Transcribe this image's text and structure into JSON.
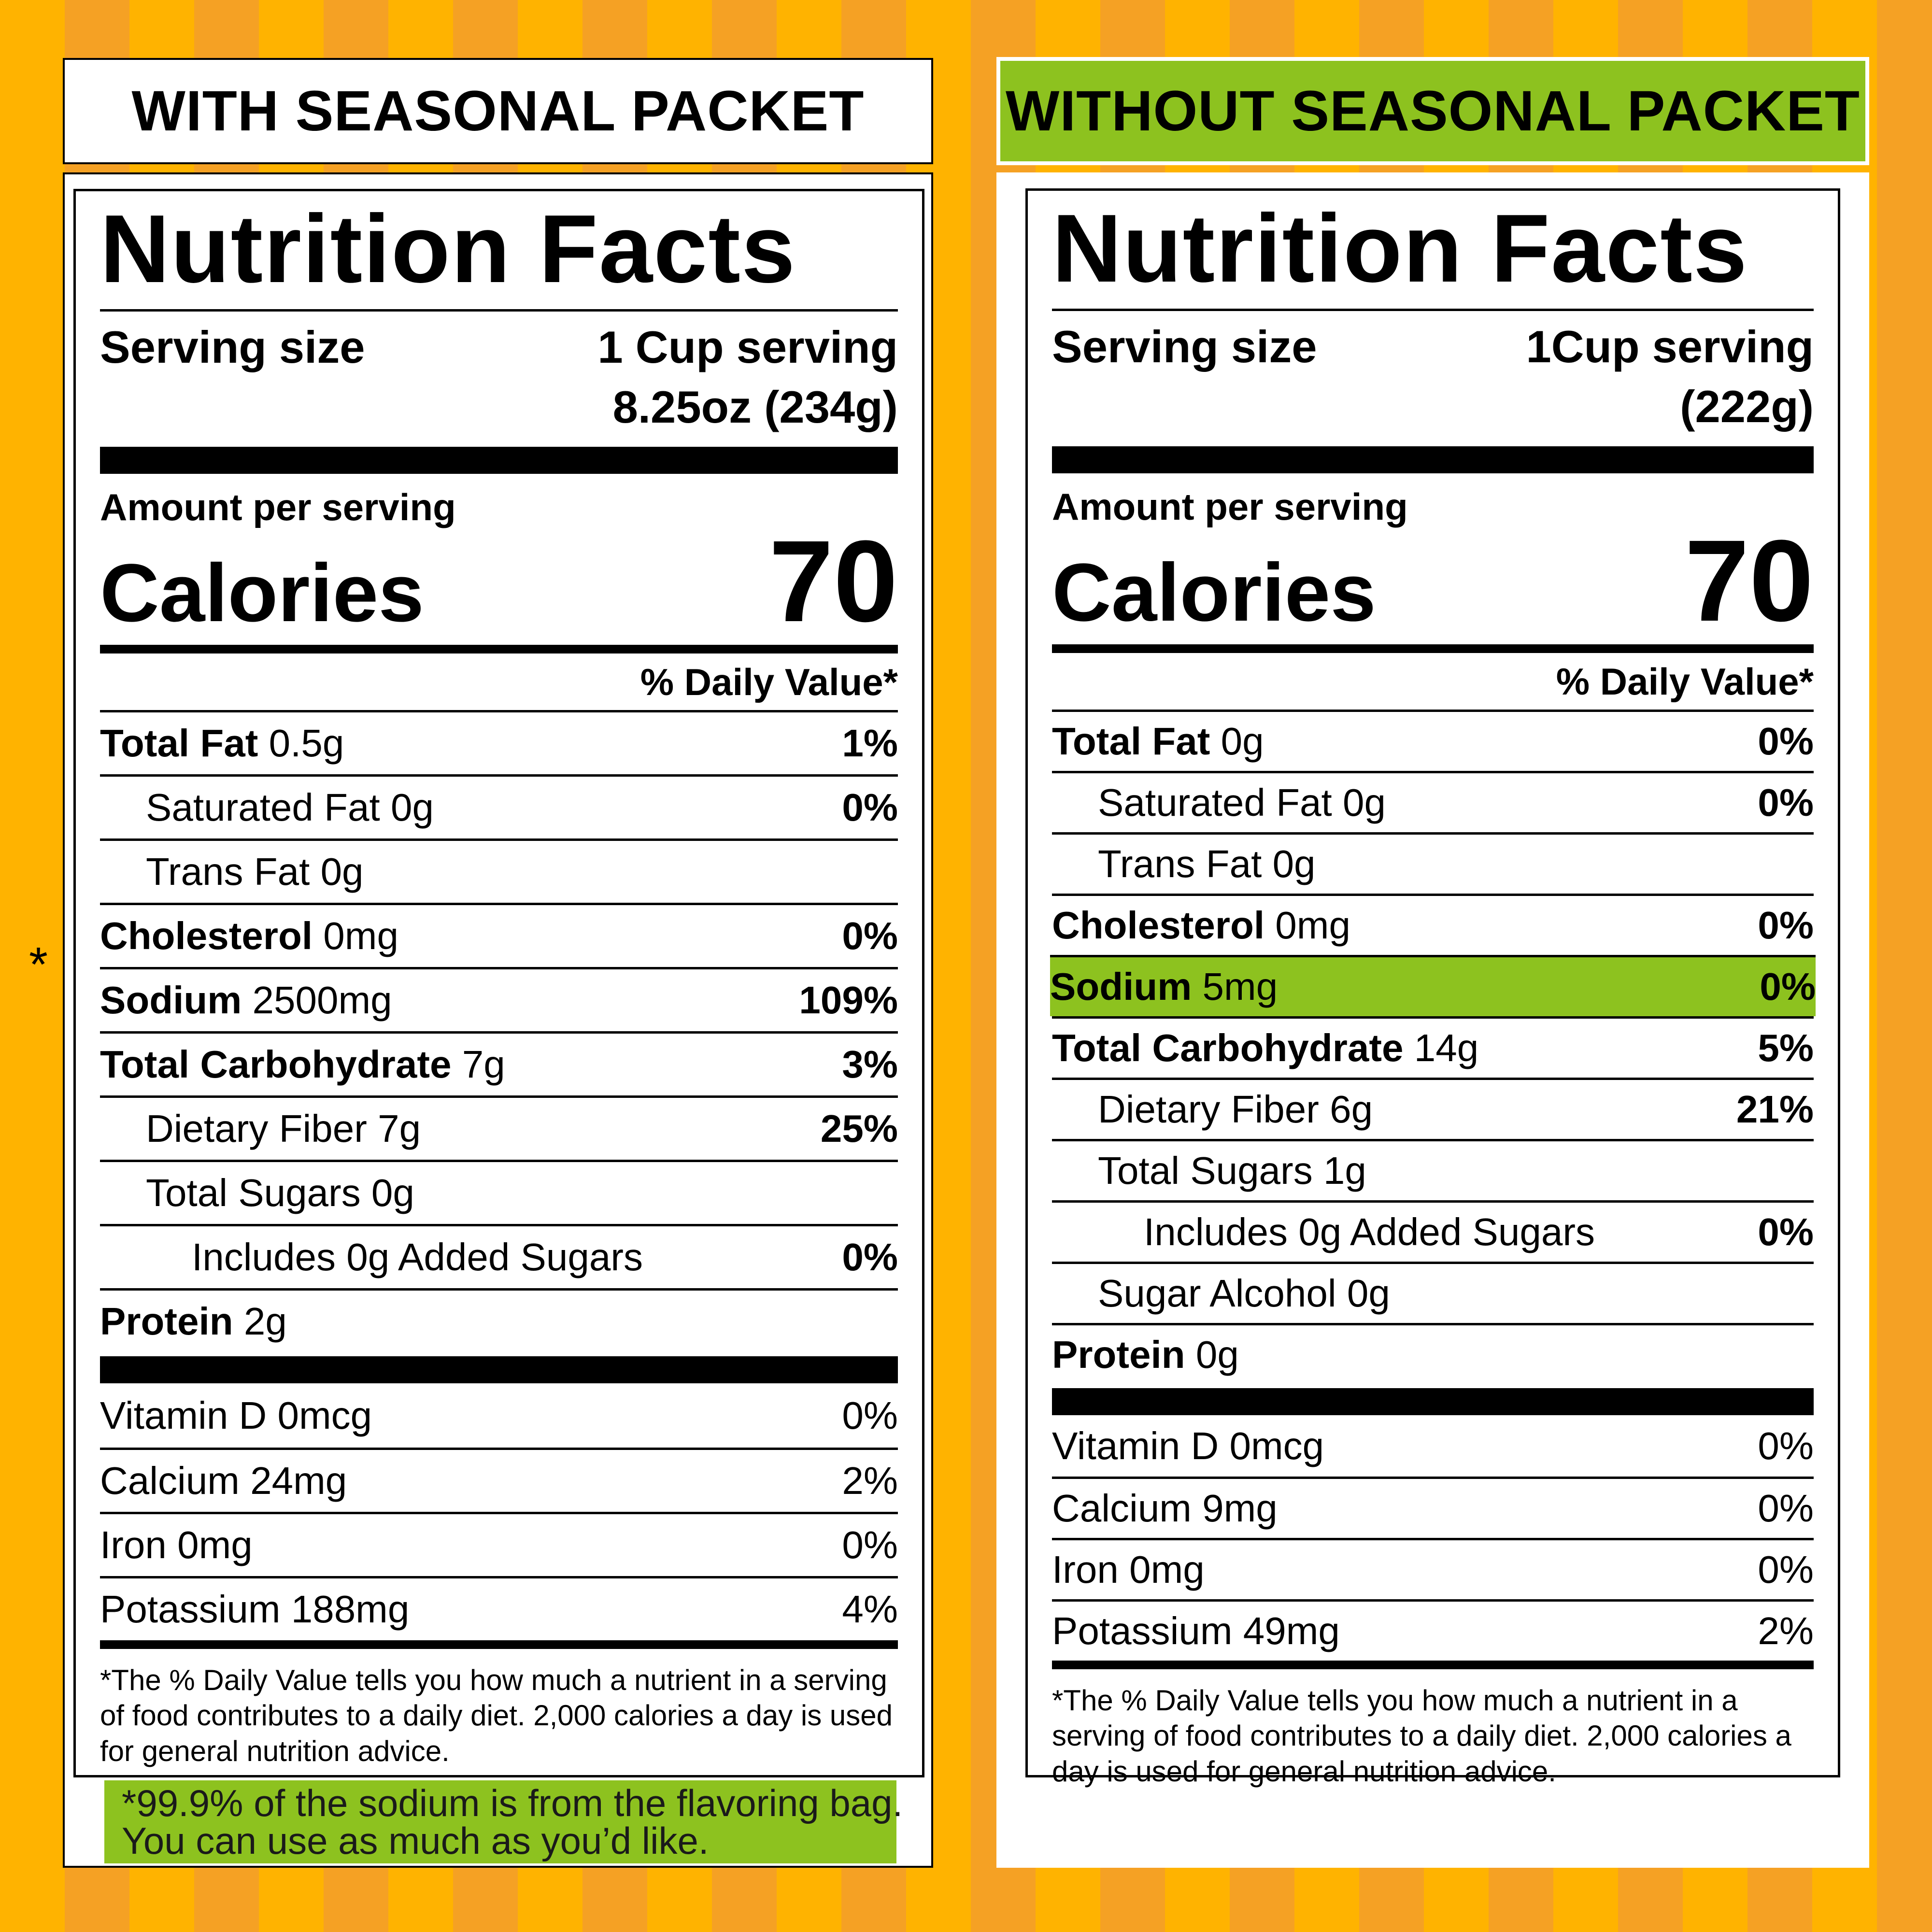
{
  "colors": {
    "orange_stripe_a": "#FFB300",
    "orange_stripe_b": "#F5A124",
    "green_highlight": "#8DC21F"
  },
  "with": {
    "header": "WITH SEASONAL PACKET",
    "title": "Nutrition Facts",
    "serving_label": "Serving size",
    "serving_line1": "1 Cup serving",
    "serving_line2": "8.25oz (234g)",
    "amount_per_serving": "Amount per serving",
    "calories_label": "Calories",
    "calories_value": "70",
    "dv_header": "% Daily Value*",
    "rows": [
      {
        "bold": "Total Fat",
        "amount": " 0.5g",
        "pct": "1%"
      },
      {
        "bold": "",
        "amount": "Saturated Fat 0g",
        "pct": "0%"
      },
      {
        "bold": "",
        "amount": "Trans Fat 0g",
        "pct": ""
      },
      {
        "bold": "Cholesterol",
        "amount": " 0mg",
        "pct": "0%"
      },
      {
        "bold": "Sodium",
        "amount": " 2500mg",
        "pct": "109%"
      },
      {
        "bold": "Total Carbohydrate",
        "amount": " 7g",
        "pct": "3%"
      },
      {
        "bold": "",
        "amount": "Dietary Fiber 7g",
        "pct": "25%"
      },
      {
        "bold": "",
        "amount": "Total Sugars 0g",
        "pct": ""
      },
      {
        "bold": "",
        "amount": "Includes 0g Added Sugars",
        "pct": "0%"
      },
      {
        "bold": "Protein",
        "amount": " 2g",
        "pct": ""
      }
    ],
    "vitamins": [
      {
        "name": "Vitamin D 0mcg",
        "pct": "0%"
      },
      {
        "name": "Calcium 24mg",
        "pct": "2%"
      },
      {
        "name": "Iron 0mg",
        "pct": "0%"
      },
      {
        "name": "Potassium 188mg",
        "pct": "4%"
      }
    ],
    "footnote": "*The % Daily Value tells you how much a nutrient in a serving of food contributes to a daily diet. 2,000 calories a day is used for general nutrition advice.",
    "asterisk": "*",
    "note_line1": "*99.9% of the sodium is from the flavoring bag.",
    "note_line2": "You can use as much as you’d like."
  },
  "without": {
    "header": "WITHOUT SEASONAL PACKET",
    "title": "Nutrition Facts",
    "serving_label": "Serving size",
    "serving_line1": "1Cup serving",
    "serving_line2": "(222g)",
    "amount_per_serving": "Amount per serving",
    "calories_label": "Calories",
    "calories_value": "70",
    "dv_header": "% Daily Value*",
    "rows": [
      {
        "bold": "Total Fat",
        "amount": " 0g",
        "pct": "0%"
      },
      {
        "bold": "",
        "amount": "Saturated Fat 0g",
        "pct": "0%"
      },
      {
        "bold": "",
        "amount": "Trans Fat 0g",
        "pct": ""
      },
      {
        "bold": "Cholesterol",
        "amount": " 0mg",
        "pct": "0%"
      },
      {
        "bold": "Sodium",
        "amount": " 5mg",
        "pct": "0%"
      },
      {
        "bold": "Total Carbohydrate",
        "amount": " 14g",
        "pct": "5%"
      },
      {
        "bold": "",
        "amount": "Dietary Fiber 6g",
        "pct": "21%"
      },
      {
        "bold": "",
        "amount": "Total Sugars 1g",
        "pct": ""
      },
      {
        "bold": "",
        "amount": "Includes 0g Added Sugars",
        "pct": "0%"
      },
      {
        "bold": "",
        "amount": "Sugar Alcohol 0g",
        "pct": ""
      },
      {
        "bold": "Protein",
        "amount": " 0g",
        "pct": ""
      }
    ],
    "vitamins": [
      {
        "name": "Vitamin D 0mcg",
        "pct": "0%"
      },
      {
        "name": "Calcium 9mg",
        "pct": "0%"
      },
      {
        "name": "Iron 0mg",
        "pct": "0%"
      },
      {
        "name": "Potassium 49mg",
        "pct": "2%"
      }
    ],
    "footnote": "*The % Daily Value tells you how much a nutrient in a serving of food contributes to a daily diet. 2,000 calories a day is used for general nutrition advice."
  }
}
